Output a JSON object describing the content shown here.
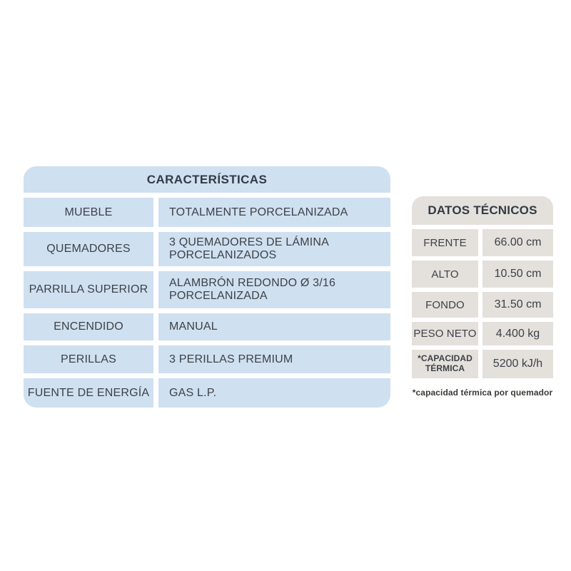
{
  "colors": {
    "page_bg": "#ffffff",
    "blue_cell": "#cfe0f0",
    "gray_cell": "#e4e0dc",
    "text_dark": "#3d4147",
    "header_text": "#323b45",
    "footnote_text": "#3c3936"
  },
  "caracteristicas": {
    "title": "CARACTERÍSTICAS",
    "rows": [
      {
        "label": "MUEBLE",
        "value": "TOTALMENTE PORCELANIZADA"
      },
      {
        "label": "QUEMADORES",
        "value": "3 QUEMADORES DE LÁMINA\nPORCELANIZADOS"
      },
      {
        "label": "PARRILLA SUPERIOR",
        "value": "ALAMBRÓN REDONDO Ø 3/16\nPORCELANIZADA"
      },
      {
        "label": "ENCENDIDO",
        "value": "MANUAL"
      },
      {
        "label": "PERILLAS",
        "value": "3 PERILLAS PREMIUM"
      },
      {
        "label": "FUENTE DE ENERGÍA",
        "value": "GAS L.P."
      }
    ]
  },
  "datos": {
    "title": "DATOS TÉCNICOS",
    "rows": [
      {
        "label": "FRENTE",
        "value": "66.00 cm"
      },
      {
        "label": "ALTO",
        "value": "10.50 cm"
      },
      {
        "label": "FONDO",
        "value": "31.50 cm"
      },
      {
        "label": "PESO NETO",
        "value": "4.400 kg"
      },
      {
        "label": "*CAPACIDAD TÉRMICA",
        "value": "5200 kJ/h"
      }
    ],
    "footnote": "*capacidad térmica por quemador"
  }
}
